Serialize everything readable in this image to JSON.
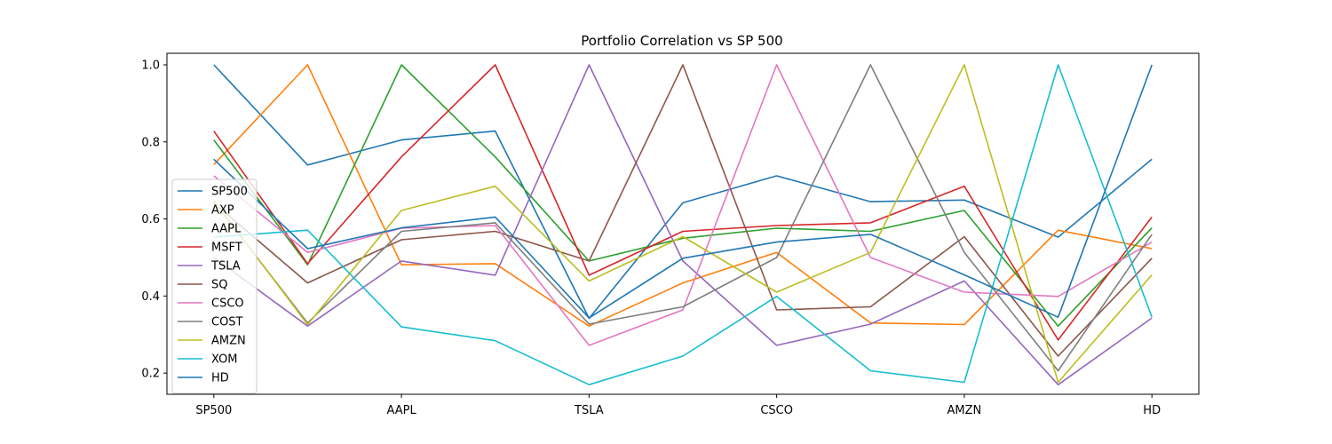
{
  "chart_data": {
    "type": "line",
    "title": "Portfolio Correlation vs SP 500",
    "xlabel": "",
    "ylabel": "",
    "categories": [
      "SP500",
      "AXP",
      "AAPL",
      "MSFT",
      "TSLA",
      "SQ",
      "CSCO",
      "COST",
      "AMZN",
      "XOM",
      "HD"
    ],
    "x_tick_labels": [
      "SP500",
      "",
      "AAPL",
      "",
      "TSLA",
      "",
      "CSCO",
      "",
      "AMZN",
      "",
      "HD"
    ],
    "y_ticks": [
      "0.2",
      "0.4",
      "0.6",
      "0.8",
      "1.0"
    ],
    "ylim": [
      0.145,
      1.03
    ],
    "grid": false,
    "legend_position": "lower-left",
    "series": [
      {
        "name": "SP500",
        "color": "#1f77b4",
        "values": [
          1.0,
          0.74,
          0.805,
          0.828,
          0.342,
          0.642,
          0.712,
          0.645,
          0.649,
          0.553,
          0.755
        ]
      },
      {
        "name": "AXP",
        "color": "#ff7f0e",
        "values": [
          0.741,
          1.0,
          0.481,
          0.484,
          0.322,
          0.434,
          0.513,
          0.33,
          0.326,
          0.571,
          0.523
        ]
      },
      {
        "name": "AAPL",
        "color": "#2ca02c",
        "values": [
          0.805,
          0.481,
          1.0,
          0.761,
          0.491,
          0.55,
          0.576,
          0.568,
          0.622,
          0.322,
          0.577
        ]
      },
      {
        "name": "MSFT",
        "color": "#d62728",
        "values": [
          0.828,
          0.484,
          0.761,
          1.0,
          0.454,
          0.568,
          0.583,
          0.59,
          0.685,
          0.286,
          0.605
        ]
      },
      {
        "name": "TSLA",
        "color": "#9467bd",
        "values": [
          0.5,
          0.322,
          0.491,
          0.454,
          1.0,
          0.491,
          0.272,
          0.327,
          0.439,
          0.17,
          0.343
        ]
      },
      {
        "name": "SQ",
        "color": "#8c564b",
        "values": [
          0.642,
          0.434,
          0.546,
          0.568,
          0.491,
          1.0,
          0.364,
          0.372,
          0.554,
          0.244,
          0.498
        ]
      },
      {
        "name": "CSCO",
        "color": "#e377c2",
        "values": [
          0.712,
          0.513,
          0.576,
          0.583,
          0.272,
          0.364,
          1.0,
          0.5,
          0.41,
          0.399,
          0.54
        ]
      },
      {
        "name": "COST",
        "color": "#7f7f7f",
        "values": [
          0.645,
          0.33,
          0.568,
          0.59,
          0.327,
          0.372,
          0.5,
          1.0,
          0.513,
          0.206,
          0.56
        ]
      },
      {
        "name": "AMZN",
        "color": "#bcbd22",
        "values": [
          0.649,
          0.326,
          0.622,
          0.685,
          0.439,
          0.554,
          0.41,
          0.513,
          1.0,
          0.176,
          0.455
        ]
      },
      {
        "name": "XOM",
        "color": "#17becf",
        "values": [
          0.553,
          0.571,
          0.32,
          0.284,
          0.17,
          0.244,
          0.399,
          0.206,
          0.176,
          1.0,
          0.345
        ]
      },
      {
        "name": "HD",
        "color": "#1f77b4",
        "values": [
          0.755,
          0.523,
          0.577,
          0.605,
          0.343,
          0.498,
          0.54,
          0.56,
          0.455,
          0.345,
          1.0
        ]
      }
    ]
  }
}
